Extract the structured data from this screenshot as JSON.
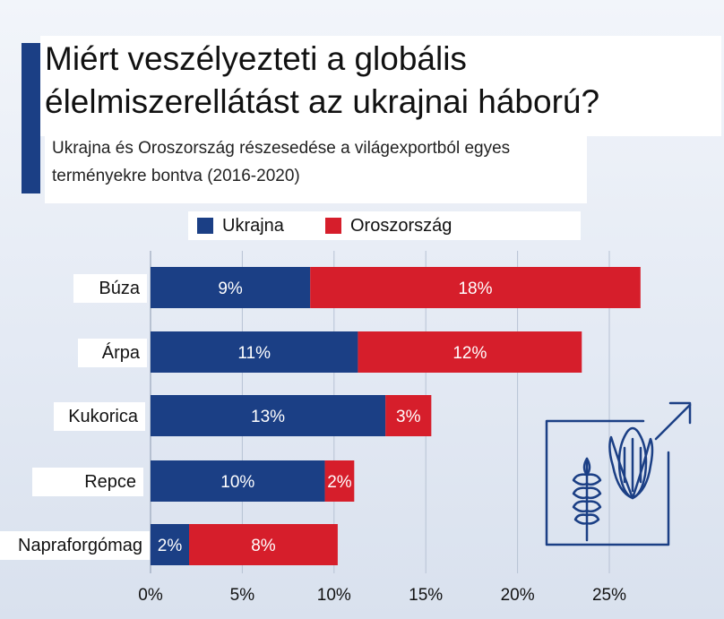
{
  "title": "Miért veszélyezteti a globális élelmiszerellátást az ukrajnai háború?",
  "subtitle": "Ukrajna és Oroszország részesedése a világexportból egyes terményekre bontva (2016-2020)",
  "colors": {
    "ukrajna": "#1b3f85",
    "oroszorszag": "#d61e2b",
    "title_bar": "#1b3f85",
    "icon_stroke": "#1b3f85"
  },
  "icon": "wheat-and-corn-growth-icon",
  "chart_data": {
    "type": "bar",
    "orientation": "horizontal",
    "stacked": true,
    "categories": [
      "Búza",
      "Árpa",
      "Kukorica",
      "Repce",
      "Napraforgómag"
    ],
    "series": [
      {
        "name": "Ukrajna",
        "values": [
          8.7,
          11.3,
          12.8,
          9.5,
          2.1
        ],
        "labels": [
          "9%",
          "11%",
          "13%",
          "10%",
          "2%"
        ]
      },
      {
        "name": "Oroszország",
        "values": [
          18.0,
          12.2,
          2.5,
          1.6,
          8.1
        ],
        "labels": [
          "18%",
          "12%",
          "3%",
          "2%",
          "8%"
        ]
      }
    ],
    "xlim": [
      0,
      25
    ],
    "xticks": [
      0,
      5,
      10,
      15,
      20,
      25
    ],
    "xtick_labels": [
      "0%",
      "5%",
      "10%",
      "15%",
      "20%",
      "25%"
    ],
    "legend": "top",
    "grid": true,
    "title": "",
    "xlabel": "",
    "ylabel": ""
  }
}
